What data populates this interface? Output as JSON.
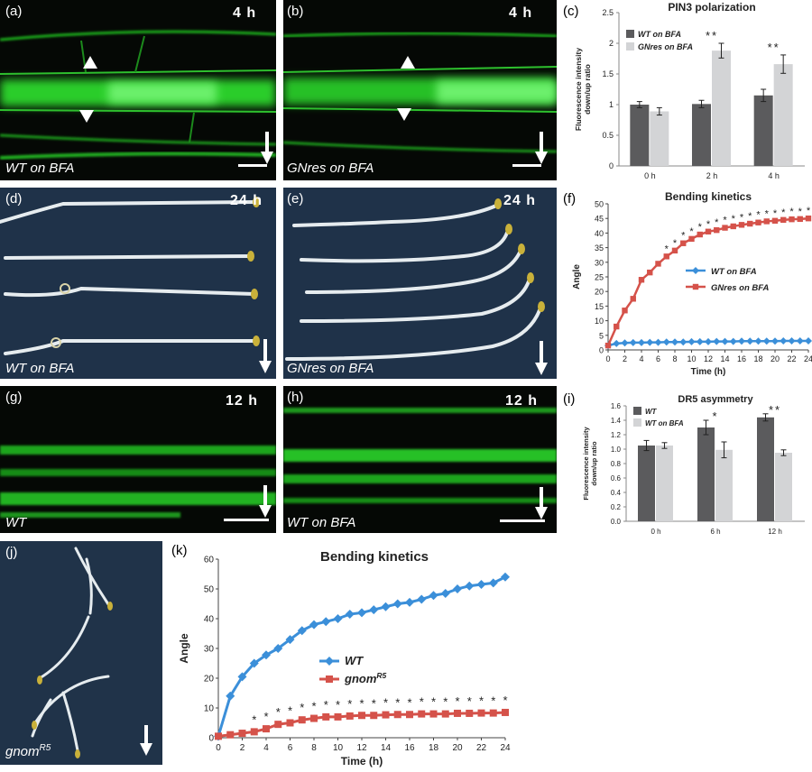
{
  "panels": {
    "a": {
      "tag": "(a)",
      "time": "4 h",
      "condition": "WT on BFA"
    },
    "b": {
      "tag": "(b)",
      "time": "4 h",
      "condition": "GNres on BFA"
    },
    "c": {
      "tag": "(c)"
    },
    "d": {
      "tag": "(d)",
      "time": "24 h",
      "condition": "WT on BFA"
    },
    "e": {
      "tag": "(e)",
      "time": "24 h",
      "condition": "GNres on BFA"
    },
    "f": {
      "tag": "(f)"
    },
    "g": {
      "tag": "(g)",
      "time": "12 h",
      "condition": "WT"
    },
    "h": {
      "tag": "(h)",
      "time": "12 h",
      "condition": "WT on BFA"
    },
    "i": {
      "tag": "(i)"
    },
    "j": {
      "tag": "(j)",
      "condition_base": "gnom",
      "condition_sup": "R5"
    },
    "k": {
      "tag": "(k)"
    }
  },
  "chart_data": [
    {
      "id": "c",
      "type": "bar",
      "title": "PIN3 polarization",
      "ylabel": "Fluorescence intensity down/up ratio",
      "ylabel_lines": [
        "Fluorescence intensity",
        "down/up ratio"
      ],
      "categories": [
        "0 h",
        "2 h",
        "4 h"
      ],
      "yticks": [
        "0",
        "0.5",
        "1",
        "1.5",
        "2",
        "2.5"
      ],
      "ylim": [
        0,
        2.5
      ],
      "series": [
        {
          "name": "WT on BFA",
          "values": [
            1.0,
            1.01,
            1.15
          ],
          "errors": [
            0.05,
            0.06,
            0.1
          ],
          "color": "#5b5b5d"
        },
        {
          "name": "GNres on BFA",
          "values": [
            0.89,
            1.88,
            1.66
          ],
          "errors": [
            0.06,
            0.12,
            0.15
          ],
          "color": "#d3d4d6"
        }
      ],
      "annotations": [
        {
          "category": "2 h",
          "text": "**"
        },
        {
          "category": "4 h",
          "text": "**"
        }
      ],
      "legend": "top-left"
    },
    {
      "id": "f",
      "type": "line",
      "title": "Bending kinetics",
      "xlabel": "Time (h)",
      "ylabel": "Angle",
      "xticks": [
        "0",
        "2",
        "4",
        "6",
        "8",
        "10",
        "12",
        "14",
        "16",
        "18",
        "20",
        "22",
        "24"
      ],
      "yticks": [
        "0",
        "5",
        "10",
        "15",
        "20",
        "25",
        "30",
        "35",
        "40",
        "45",
        "50"
      ],
      "xlim": [
        0,
        24
      ],
      "ylim": [
        0,
        50
      ],
      "x": [
        0,
        1,
        2,
        3,
        4,
        5,
        6,
        7,
        8,
        9,
        10,
        11,
        12,
        13,
        14,
        15,
        16,
        17,
        18,
        19,
        20,
        21,
        22,
        23,
        24
      ],
      "series": [
        {
          "name": "WT on BFA",
          "color": "#3b8fd9",
          "marker": "diamond",
          "values": [
            1.5,
            2.2,
            2.4,
            2.5,
            2.5,
            2.6,
            2.6,
            2.7,
            2.7,
            2.7,
            2.8,
            2.8,
            2.8,
            2.9,
            2.9,
            2.9,
            3.0,
            3.0,
            3.0,
            3.0,
            3.0,
            3.1,
            3.1,
            3.1,
            3.1
          ]
        },
        {
          "name": "GNres on BFA",
          "color": "#d5524a",
          "marker": "square",
          "values": [
            1.5,
            8.0,
            13.5,
            17.5,
            24.0,
            26.5,
            29.5,
            32.0,
            34.0,
            36.5,
            38.0,
            39.5,
            40.5,
            41.0,
            41.8,
            42.3,
            42.8,
            43.2,
            43.6,
            44.0,
            44.2,
            44.5,
            44.7,
            44.8,
            45.0
          ]
        }
      ],
      "star_positions": [
        7,
        8,
        9,
        10,
        11,
        12,
        13,
        14,
        15,
        16,
        17,
        18,
        19,
        20,
        21,
        22,
        23,
        24
      ],
      "star_text": "*",
      "legend": "center-right"
    },
    {
      "id": "i",
      "type": "bar",
      "title": "DR5 asymmetry",
      "ylabel": "Fluorescence intensity down/up ratio",
      "ylabel_lines": [
        "Fluorescence intensity",
        "down/up ratio"
      ],
      "categories": [
        "0 h",
        "6 h",
        "12 h"
      ],
      "yticks": [
        "0.0",
        "0.2",
        "0.4",
        "0.6",
        "0.8",
        "1.0",
        "1.2",
        "1.4",
        "1.6"
      ],
      "ylim": [
        0,
        1.6
      ],
      "series": [
        {
          "name": "WT",
          "values": [
            1.05,
            1.3,
            1.44
          ],
          "errors": [
            0.07,
            0.1,
            0.05
          ],
          "color": "#5b5b5d"
        },
        {
          "name": "WT on BFA",
          "values": [
            1.05,
            0.99,
            0.95
          ],
          "errors": [
            0.04,
            0.11,
            0.04
          ],
          "color": "#d3d4d6"
        }
      ],
      "annotations": [
        {
          "category": "6 h",
          "text": "*"
        },
        {
          "category": "12 h",
          "text": "**"
        }
      ],
      "legend": "top-left"
    },
    {
      "id": "k",
      "type": "line",
      "title": "Bending kinetics",
      "xlabel": "Time (h)",
      "ylabel": "Angle",
      "xticks": [
        "0",
        "2",
        "4",
        "6",
        "8",
        "10",
        "12",
        "14",
        "16",
        "18",
        "20",
        "22",
        "24"
      ],
      "yticks": [
        "0",
        "10",
        "20",
        "30",
        "40",
        "50",
        "60"
      ],
      "xlim": [
        0,
        24
      ],
      "ylim": [
        0,
        60
      ],
      "x": [
        0,
        1,
        2,
        3,
        4,
        5,
        6,
        7,
        8,
        9,
        10,
        11,
        12,
        13,
        14,
        15,
        16,
        17,
        18,
        19,
        20,
        21,
        22,
        23,
        24
      ],
      "series": [
        {
          "name": "WT",
          "color": "#3b8fd9",
          "marker": "diamond",
          "values": [
            0.5,
            14.0,
            20.5,
            25.0,
            27.8,
            30.0,
            33.0,
            36.0,
            38.0,
            39.0,
            40.0,
            41.5,
            42.0,
            43.0,
            44.0,
            45.0,
            45.5,
            46.5,
            47.8,
            48.5,
            50.0,
            51.0,
            51.5,
            52.0,
            54.0
          ]
        },
        {
          "name": "gnomR5",
          "name_base": "gnom",
          "name_sup": "R5",
          "color": "#d5524a",
          "marker": "square",
          "values": [
            0.5,
            1.0,
            1.5,
            2.0,
            3.0,
            4.5,
            5.0,
            6.0,
            6.5,
            7.0,
            7.0,
            7.3,
            7.5,
            7.5,
            7.7,
            7.8,
            7.8,
            8.0,
            8.0,
            8.0,
            8.2,
            8.2,
            8.3,
            8.3,
            8.5
          ]
        }
      ],
      "star_positions": [
        3,
        4,
        5,
        6,
        7,
        8,
        9,
        10,
        11,
        12,
        13,
        14,
        15,
        16,
        17,
        18,
        19,
        20,
        21,
        22,
        23,
        24
      ],
      "star_text": "*",
      "legend": "center"
    }
  ]
}
